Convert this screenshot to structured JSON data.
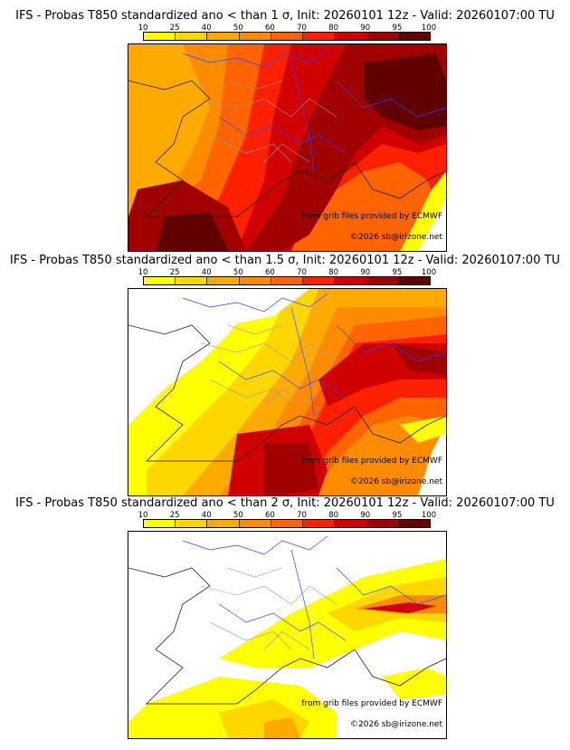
{
  "colorbar": {
    "ticks": [
      "10",
      "25",
      "40",
      "50",
      "60",
      "70",
      "80",
      "90",
      "95",
      "100"
    ],
    "colors": [
      "#ffff00",
      "#ffd700",
      "#ffaa00",
      "#ff8c00",
      "#ff6400",
      "#ff2000",
      "#d00000",
      "#a00000",
      "#600000"
    ]
  },
  "panels": [
    {
      "title": "IFS - Probas T850  standardized ano < than 1 σ, Init: 20260101 12z - Valid: 20260107:00 TU"
    },
    {
      "title": "IFS - Probas T850  standardized ano < than 1.5 σ, Init: 20260101 12z - Valid: 20260107:00 TU"
    },
    {
      "title": "IFS - Probas T850  standardized ano < than 2 σ, Init: 20260101 12z - Valid: 20260107:00 TU"
    }
  ],
  "credits": {
    "source": "from grib files provided by ECMWF",
    "copyright": "©2026 sb@irizone.net"
  }
}
